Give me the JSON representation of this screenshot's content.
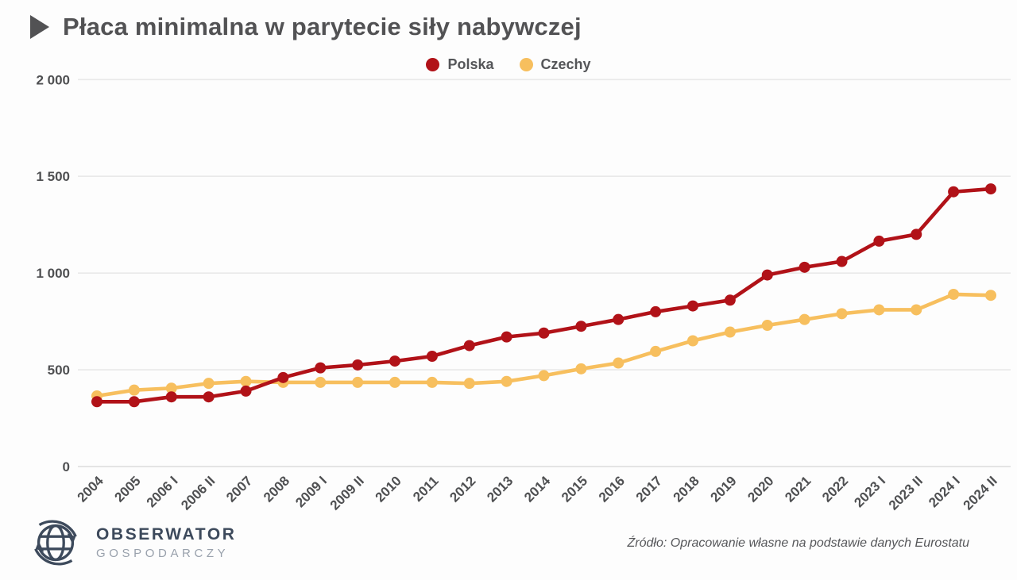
{
  "title": {
    "text": "Płaca minimalna w parytecie siły nabywczej"
  },
  "legend": [
    {
      "label": "Polska",
      "color": "#b11218"
    },
    {
      "label": "Czechy",
      "color": "#f7bf5e"
    }
  ],
  "chart_data": {
    "type": "line",
    "title": "Płaca minimalna w parytecie siły nabywczej",
    "categories": [
      "2004",
      "2005",
      "2006 I",
      "2006 II",
      "2007",
      "2008",
      "2009 I",
      "2009 II",
      "2010",
      "2011",
      "2012",
      "2013",
      "2014",
      "2015",
      "2016",
      "2017",
      "2018",
      "2019",
      "2020",
      "2021",
      "2022",
      "2023 I",
      "2023 II",
      "2024 I",
      "2024 II"
    ],
    "series": [
      {
        "name": "Polska",
        "color": "#b11218",
        "values": [
          335,
          335,
          360,
          360,
          390,
          460,
          510,
          525,
          545,
          570,
          625,
          670,
          690,
          725,
          760,
          800,
          830,
          860,
          990,
          1030,
          1060,
          1165,
          1200,
          1420,
          1435
        ]
      },
      {
        "name": "Czechy",
        "color": "#f7bf5e",
        "values": [
          365,
          395,
          405,
          430,
          440,
          435,
          435,
          435,
          435,
          435,
          430,
          440,
          470,
          505,
          535,
          595,
          650,
          695,
          730,
          760,
          790,
          810,
          810,
          890,
          885
        ]
      }
    ],
    "xlabel": "",
    "ylabel": "",
    "ylim": [
      0,
      2000
    ],
    "yticks": [
      0,
      500,
      1000,
      1500,
      2000
    ],
    "ytick_labels": [
      "0",
      "500",
      "1 000",
      "1 500",
      "2 000"
    ],
    "grid": "horizontal",
    "legend_position": "top-center",
    "marker": "circle"
  },
  "footer": {
    "logo_line1": "OBSERWATOR",
    "logo_line2": "GOSPODARCZY",
    "source": "Źródło: Opracowanie własne na podstawie danych Eurostatu"
  },
  "colors": {
    "background": "#fdfdfd",
    "title_text": "#525254",
    "axis_text": "#4f5052",
    "gridline": "#e9e9e9",
    "baseline": "#dcdcdc",
    "polska_line": "#b11218",
    "czechy_line": "#f7bf5e",
    "logo_primary": "#3d4a5c",
    "logo_secondary": "#99a1ac"
  }
}
